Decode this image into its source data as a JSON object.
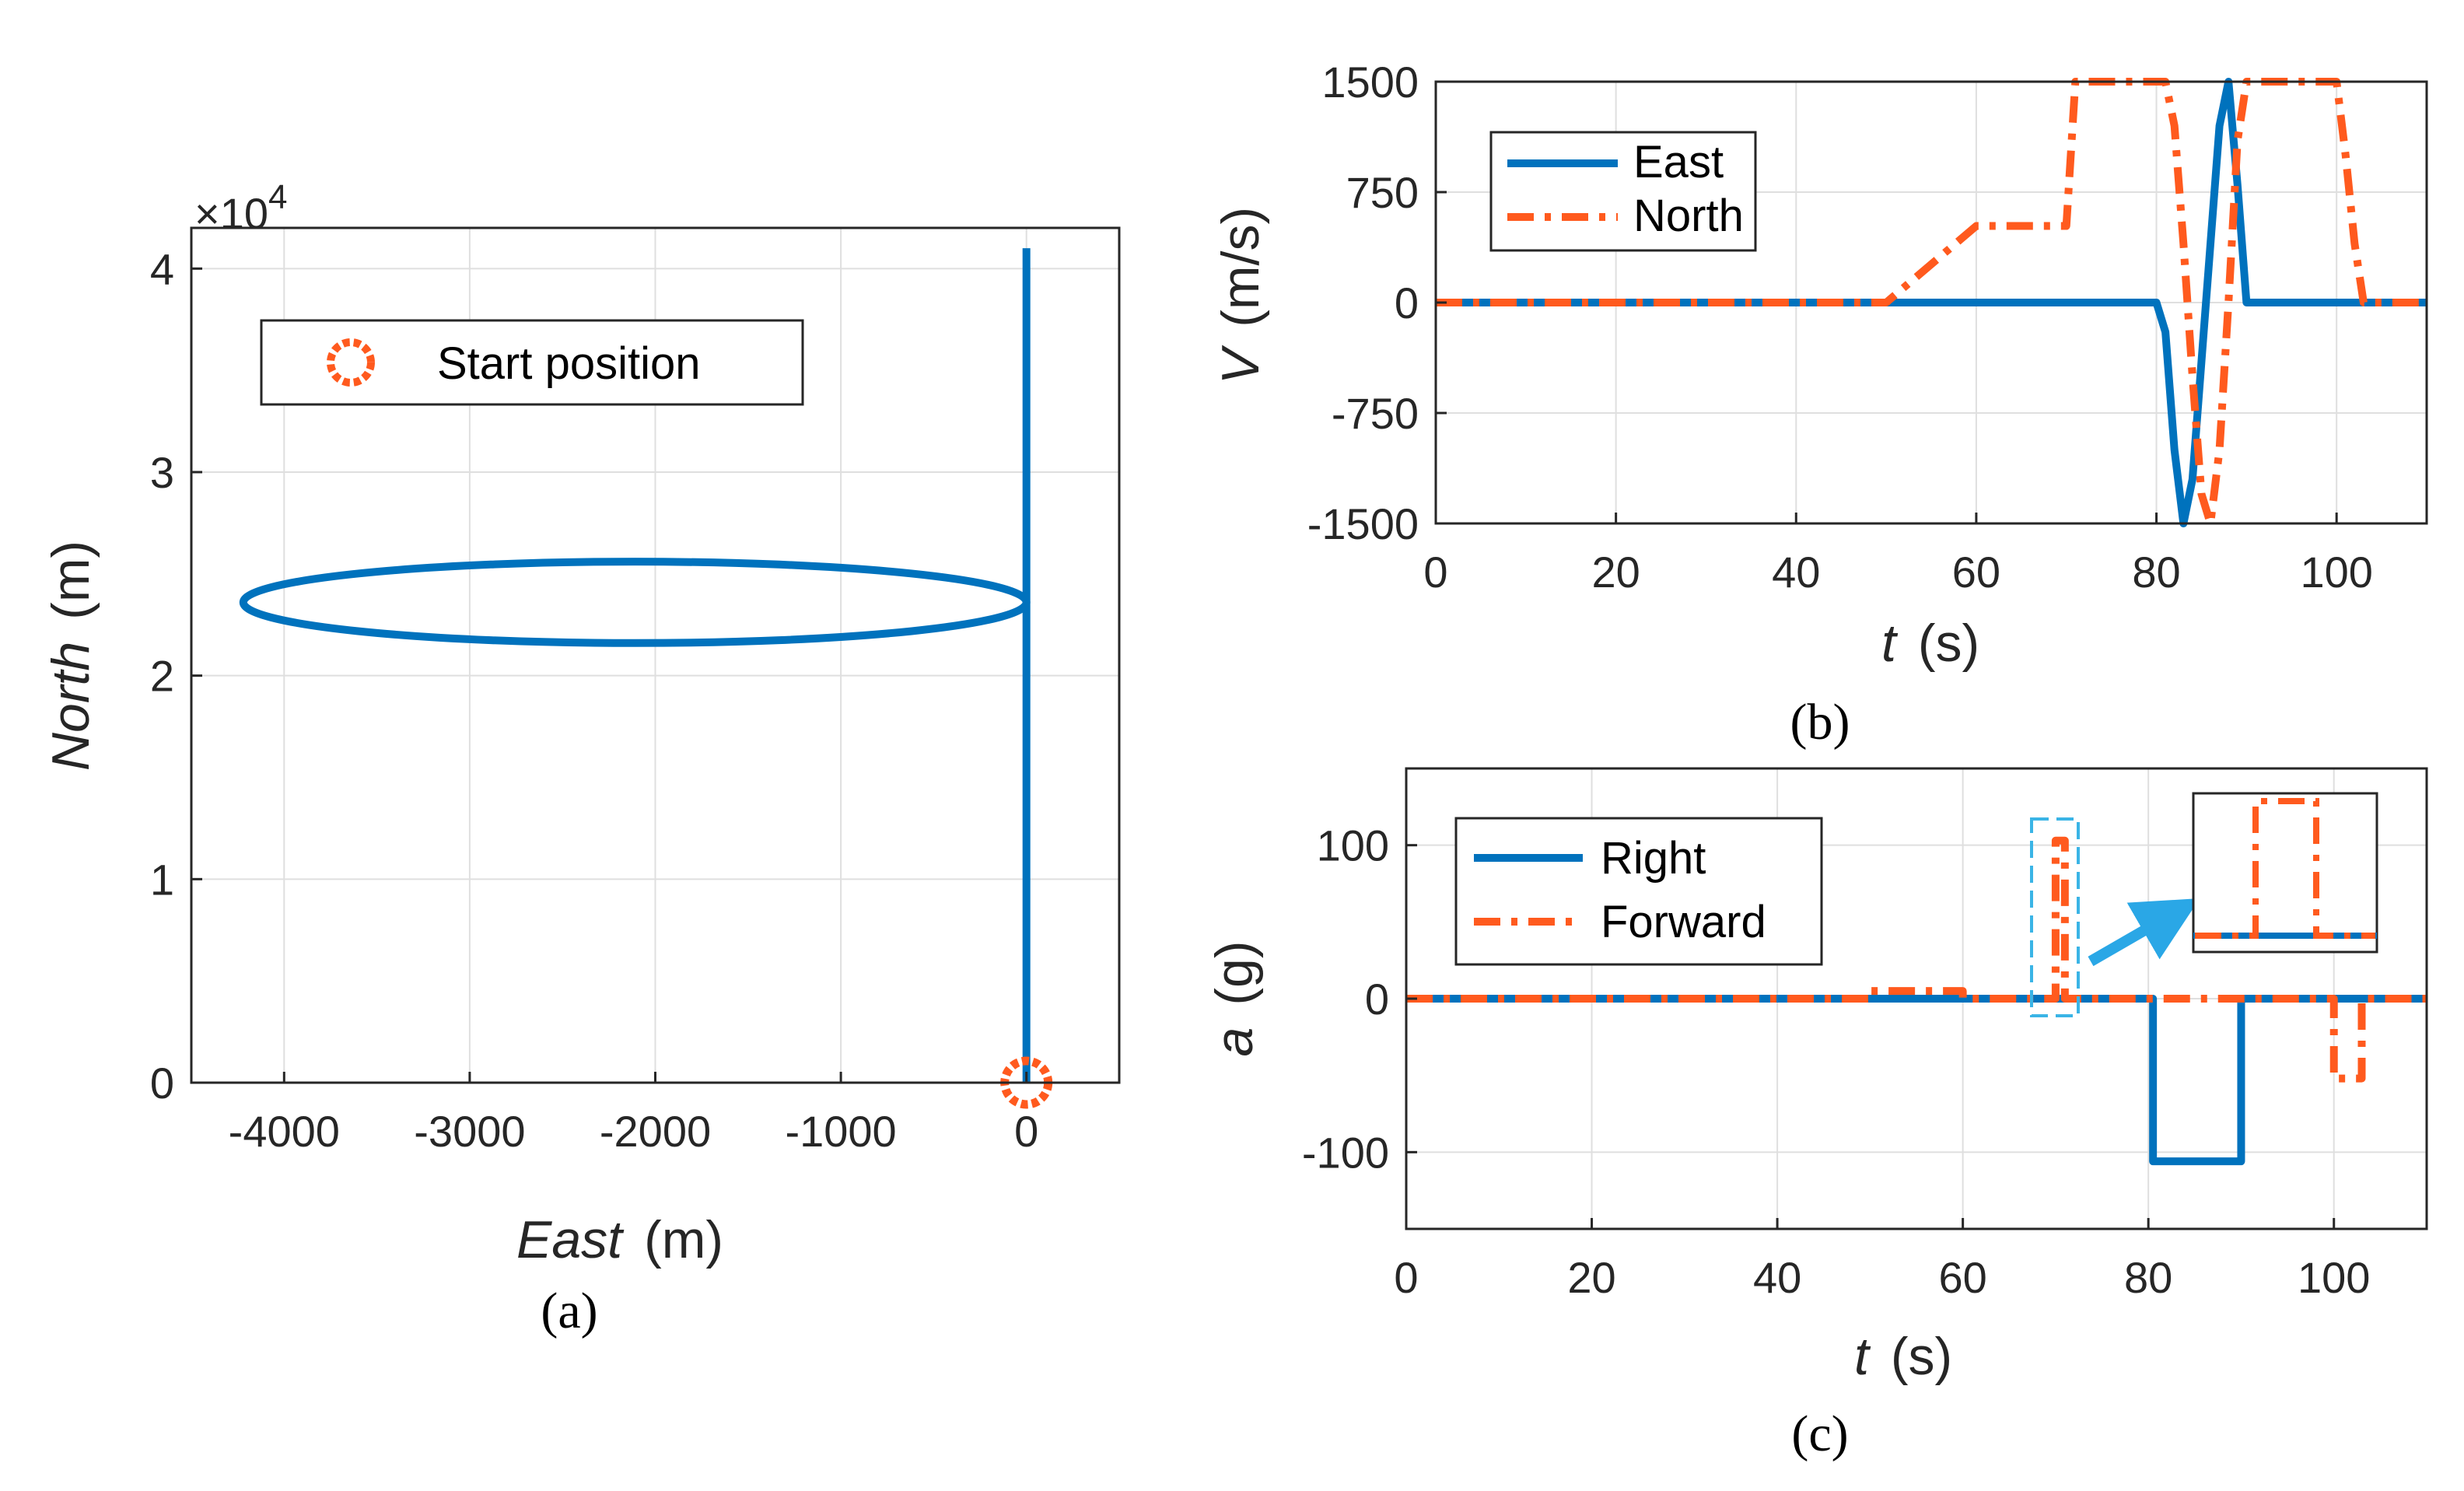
{
  "colors": {
    "blue": "#0072bd",
    "orange": "#ff5a1e",
    "inset_box": "#3ab4e6",
    "arrow": "#2aa7e6"
  },
  "chart_data": [
    {
      "id": "a",
      "type": "line",
      "caption": "(a)",
      "xlabel": "East",
      "xunit": "(m)",
      "ylabel": "North",
      "yunit": "(m)",
      "y_exponent_label": "×10",
      "y_exponent_power": "4",
      "xlim": [
        -4500,
        500
      ],
      "ylim": [
        0,
        4.2
      ],
      "xticks": [
        -4000,
        -3000,
        -2000,
        -1000,
        0
      ],
      "xtick_labels": [
        "-4000",
        "-3000",
        "-2000",
        "-1000",
        "0"
      ],
      "yticks": [
        0,
        1,
        2,
        3,
        4
      ],
      "ytick_labels": [
        "0",
        "1",
        "2",
        "3",
        "4"
      ],
      "legend_location": "top-left",
      "legend": [
        "Start position"
      ],
      "series": [
        {
          "name": "Trajectory",
          "segments": [
            {
              "type": "vertical",
              "x": 0,
              "y_from": 0,
              "y_to": 2.35
            },
            {
              "type": "ellipse",
              "cx": -2110,
              "cy": 2.36,
              "rx": 2110,
              "ry": 0.2
            },
            {
              "type": "vertical",
              "x": 0,
              "y_from": 2.35,
              "y_to": 4.1
            }
          ]
        },
        {
          "name": "Start position",
          "marker": "circle",
          "x": 0,
          "y": 0
        }
      ]
    },
    {
      "id": "b",
      "type": "line",
      "caption": "(b)",
      "xlabel": "t",
      "xunit": "(s)",
      "ylabel": "V",
      "yunit": "(m/s)",
      "xlim": [
        0,
        110
      ],
      "ylim": [
        -1500,
        1500
      ],
      "xticks": [
        0,
        20,
        40,
        60,
        80,
        100
      ],
      "xtick_labels": [
        "0",
        "20",
        "40",
        "60",
        "80",
        "100"
      ],
      "yticks": [
        -1500,
        -750,
        0,
        750,
        1500
      ],
      "ytick_labels": [
        "-1500",
        "-750",
        "0",
        "750",
        "1500"
      ],
      "legend_location": "top-left",
      "legend": [
        "East",
        "North"
      ],
      "series": [
        {
          "name": "East",
          "style": "solid",
          "x": [
            0,
            80,
            81,
            82,
            83,
            84,
            85,
            86,
            87,
            88,
            89,
            90,
            110
          ],
          "y": [
            0,
            0,
            -200,
            -1000,
            -1500,
            -1200,
            -400,
            400,
            1200,
            1500,
            800,
            0,
            0
          ]
        },
        {
          "name": "North",
          "style": "dashdot",
          "x": [
            0,
            50,
            60,
            70,
            71,
            81,
            82,
            83,
            84,
            85,
            86,
            87,
            88,
            89,
            90,
            100,
            101,
            102,
            103,
            110
          ],
          "y": [
            0,
            0,
            520,
            520,
            1500,
            1500,
            1200,
            400,
            -500,
            -1300,
            -1500,
            -1000,
            0,
            1100,
            1500,
            1500,
            1000,
            400,
            0,
            0
          ]
        }
      ]
    },
    {
      "id": "c",
      "type": "line",
      "caption": "(c)",
      "xlabel": "t",
      "xunit": "(s)",
      "ylabel": "a",
      "yunit": "(g)",
      "xlim": [
        0,
        110
      ],
      "ylim": [
        -150,
        150
      ],
      "xticks": [
        0,
        20,
        40,
        60,
        80,
        100
      ],
      "xtick_labels": [
        "0",
        "20",
        "40",
        "60",
        "80",
        "100"
      ],
      "yticks": [
        -100,
        0,
        100
      ],
      "ytick_labels": [
        "-100",
        "0",
        "100"
      ],
      "legend_location": "top-left",
      "legend": [
        "Right",
        "Forward"
      ],
      "series": [
        {
          "name": "Right",
          "style": "solid",
          "x": [
            0,
            80.5,
            80.5,
            90,
            90,
            110
          ],
          "y": [
            0,
            0,
            -106,
            -106,
            0,
            0
          ]
        },
        {
          "name": "Forward",
          "style": "dashdot",
          "x": [
            0,
            50,
            50,
            60,
            60,
            70,
            70,
            71,
            71,
            100,
            100,
            103,
            103,
            110
          ],
          "y": [
            0,
            0,
            5,
            5,
            0,
            0,
            103,
            103,
            0,
            0,
            -52,
            -52,
            0,
            0
          ]
        }
      ],
      "inset": {
        "note": "zoom of Forward pulse near t = 70 s"
      }
    }
  ]
}
